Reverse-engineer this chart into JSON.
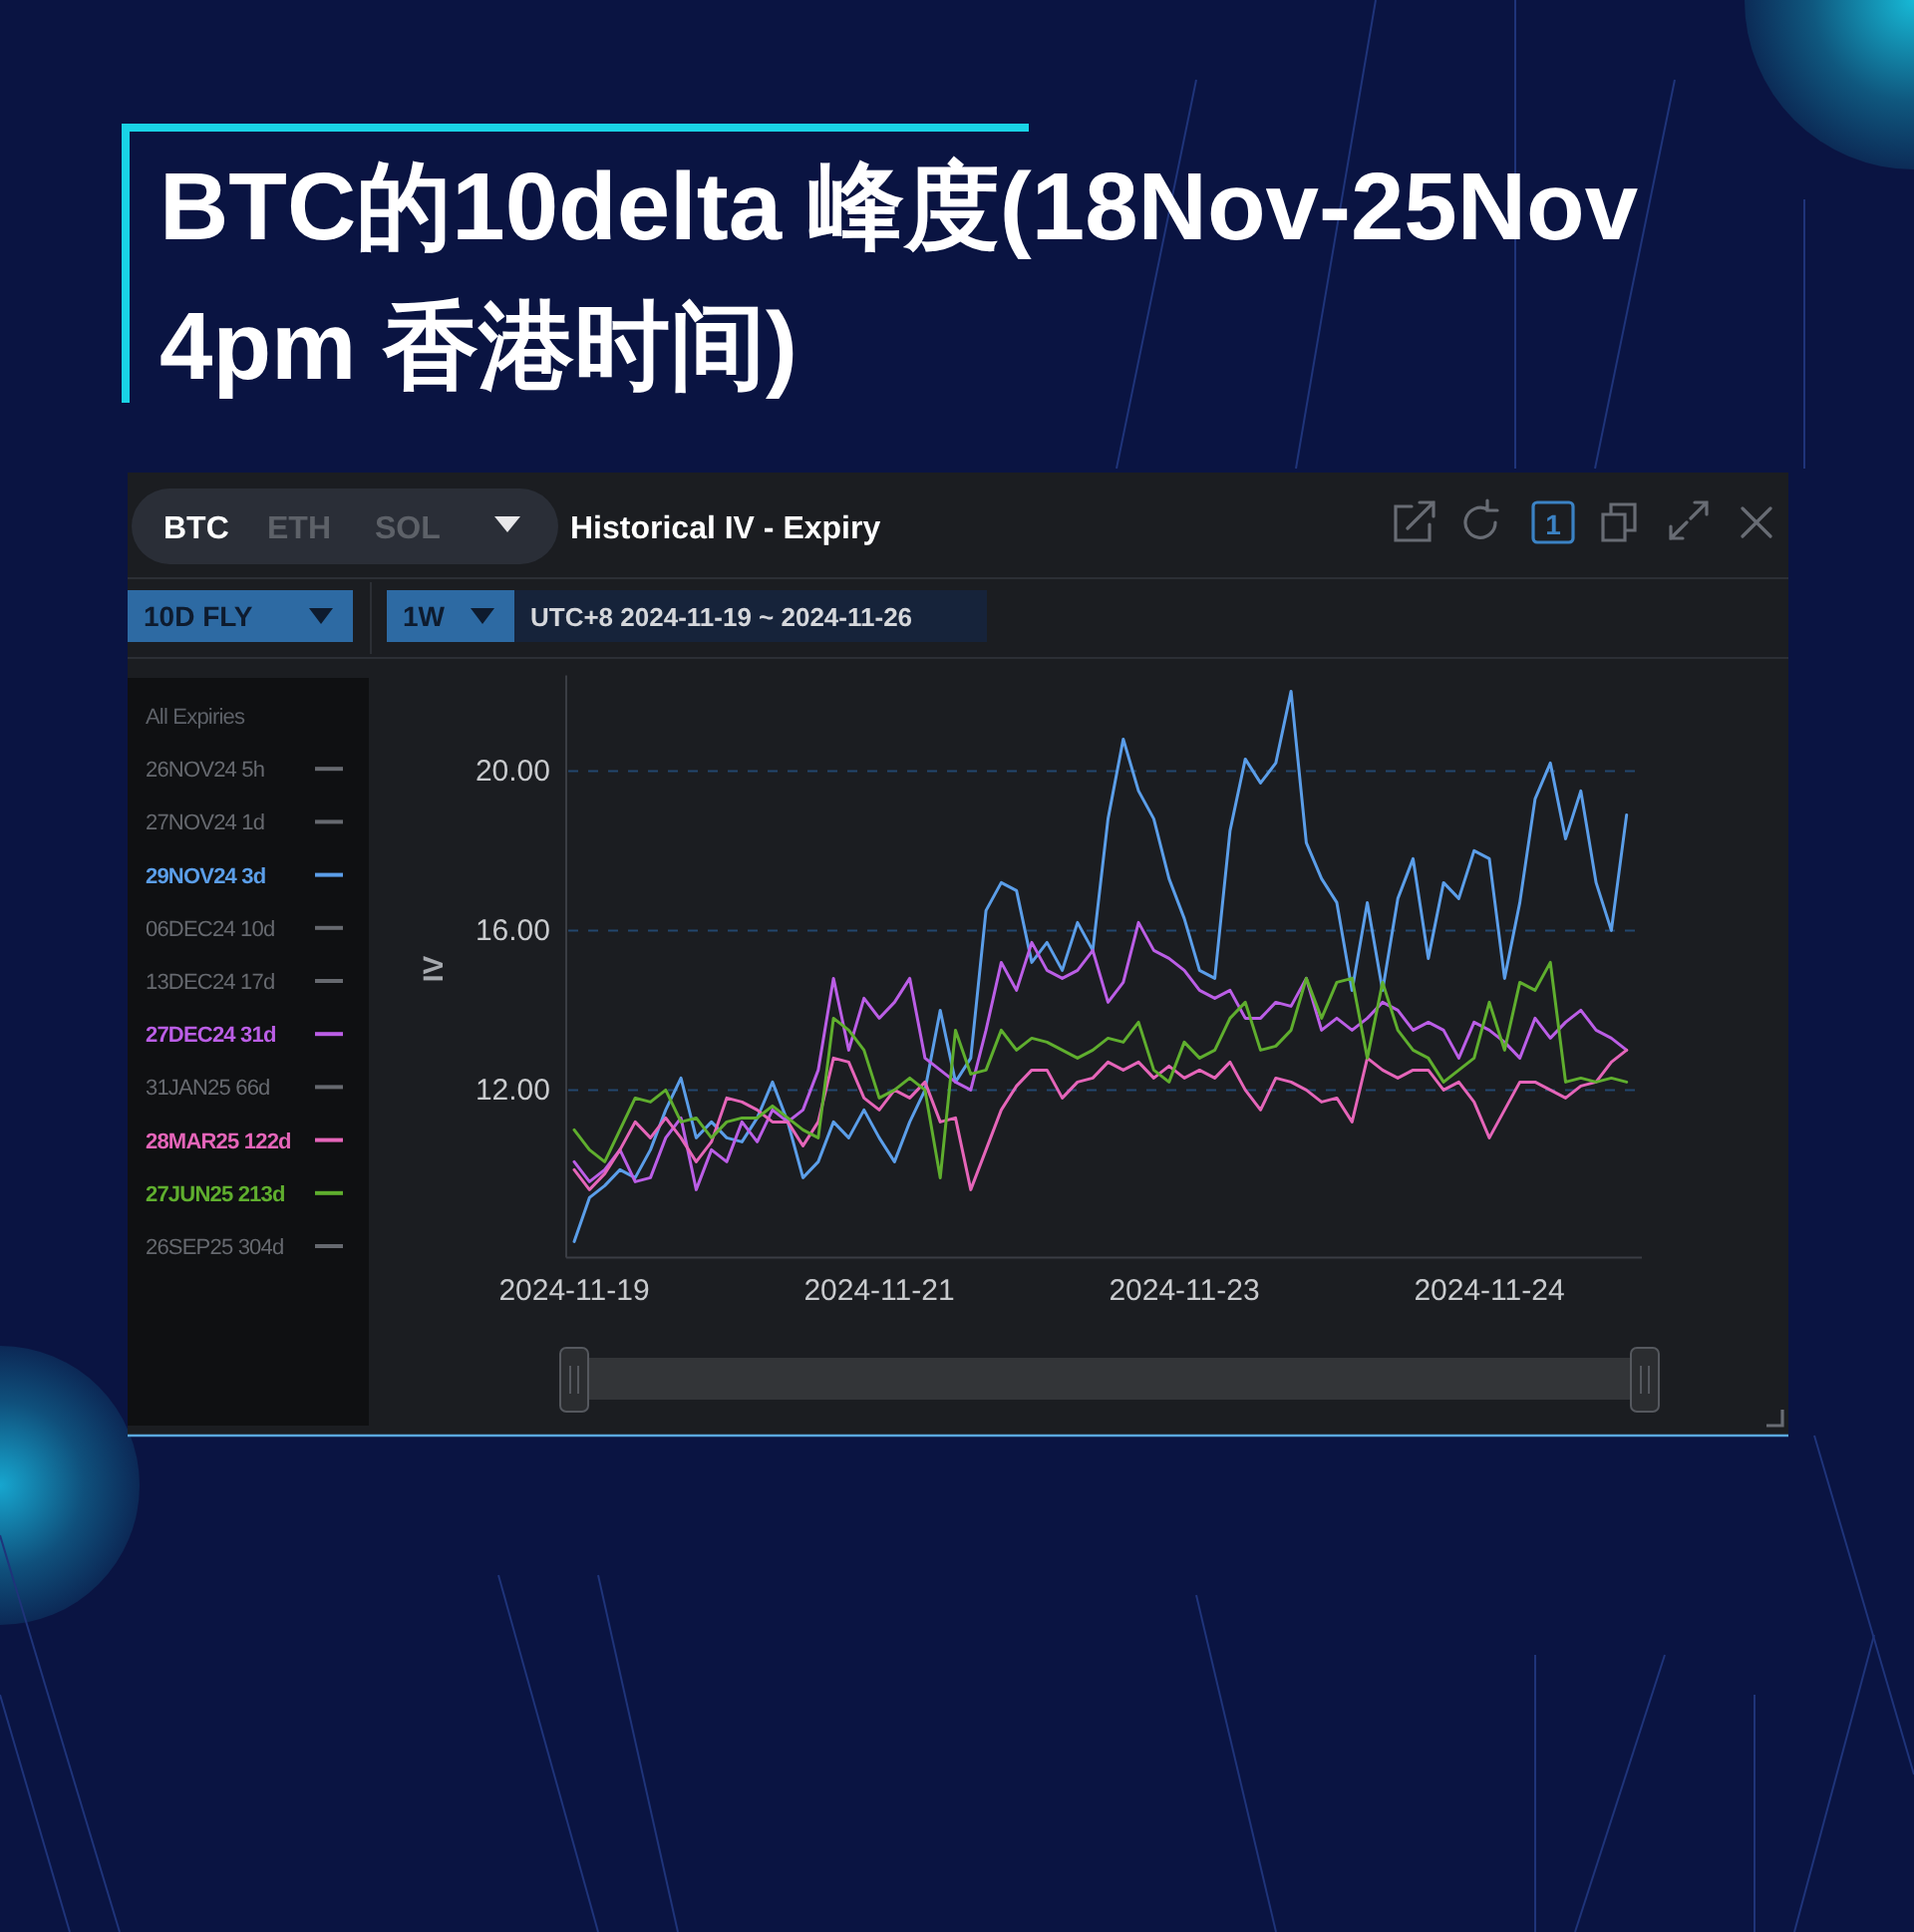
{
  "chart_data": {
    "type": "line",
    "title": "BTC的10delta 峰度(18Nov-25Nov 4pm 香港时间)",
    "subtitle": "Historical IV - Expiry",
    "ylabel": "IV",
    "legend_title": "All Expiries",
    "annotations": [
      "BTC",
      "ETH",
      "SOL",
      "1",
      "10D FLY",
      "1W",
      "UTC+8 2024-11-19 ~ 2024-11-26"
    ],
    "categories": [
      "2024-11-19",
      null,
      null,
      null,
      null,
      null,
      null,
      null,
      null,
      null,
      null,
      null,
      null,
      null,
      null,
      null,
      null,
      null,
      null,
      null,
      "2024-11-21",
      null,
      null,
      null,
      null,
      null,
      null,
      null,
      null,
      null,
      null,
      null,
      null,
      null,
      null,
      null,
      null,
      null,
      null,
      null,
      "2024-11-23",
      null,
      null,
      null,
      null,
      null,
      null,
      null,
      null,
      null,
      null,
      null,
      null,
      null,
      null,
      null,
      null,
      null,
      null,
      null,
      "2024-11-24",
      null,
      null,
      null,
      null,
      null,
      null,
      null,
      null,
      null
    ],
    "ylim": [
      7.8,
      22.4
    ],
    "yticks": [
      {
        "value": 12,
        "label": "12.00"
      },
      {
        "value": 16,
        "label": "16.00"
      },
      {
        "value": 20,
        "label": "20.00"
      }
    ],
    "grid": "y",
    "legend": "left",
    "series": [
      {
        "name": "26NOV24 5h",
        "color": "#66696f",
        "values": [
          null,
          null,
          null,
          null,
          null,
          null,
          null,
          null,
          null,
          null,
          null,
          null,
          null,
          null,
          null,
          null,
          null,
          null,
          null,
          null,
          null,
          null,
          null,
          null,
          null,
          null,
          null,
          null,
          null,
          null,
          null,
          null,
          null,
          null,
          null,
          null,
          null,
          null,
          null,
          null,
          null,
          null,
          null,
          null,
          null,
          null,
          null,
          null,
          null,
          null,
          null,
          null,
          null,
          null,
          null,
          null,
          null,
          null,
          null,
          null,
          null,
          null,
          null,
          null,
          null,
          null,
          null,
          null,
          null,
          null
        ]
      },
      {
        "name": "27NOV24 1d",
        "color": "#66696f",
        "values": [
          null,
          null,
          null,
          null,
          null,
          null,
          null,
          null,
          null,
          null,
          null,
          null,
          null,
          null,
          null,
          null,
          null,
          null,
          null,
          null,
          null,
          null,
          null,
          null,
          null,
          null,
          null,
          null,
          null,
          null,
          null,
          null,
          null,
          null,
          null,
          null,
          null,
          null,
          null,
          null,
          null,
          null,
          null,
          null,
          null,
          null,
          null,
          null,
          null,
          null,
          null,
          null,
          null,
          null,
          null,
          null,
          null,
          null,
          null,
          null,
          null,
          null,
          null,
          null,
          null,
          null,
          null,
          null,
          null,
          null
        ]
      },
      {
        "name": "29NOV24 3d",
        "color": "#5b9ee9",
        "values": [
          8.2,
          9.3,
          9.6,
          10.0,
          9.8,
          10.5,
          11.5,
          12.3,
          10.8,
          11.2,
          10.8,
          10.7,
          11.3,
          12.2,
          11.2,
          9.8,
          10.2,
          11.2,
          10.8,
          11.5,
          10.8,
          10.2,
          11.2,
          12.0,
          14.0,
          12.2,
          12.8,
          16.5,
          17.2,
          17.0,
          15.2,
          15.7,
          15.0,
          16.2,
          15.5,
          18.8,
          20.8,
          19.5,
          18.8,
          17.3,
          16.3,
          15.0,
          14.8,
          18.5,
          20.3,
          19.7,
          20.2,
          22.0,
          18.2,
          17.3,
          16.7,
          14.5,
          16.7,
          14.5,
          16.8,
          17.8,
          15.3,
          17.2,
          16.8,
          18.0,
          17.8,
          14.8,
          16.7,
          19.3,
          20.2,
          18.3,
          19.5,
          17.2,
          16.0,
          18.9
        ]
      },
      {
        "name": "06DEC24 10d",
        "color": "#66696f",
        "values": [
          null,
          null,
          null,
          null,
          null,
          null,
          null,
          null,
          null,
          null,
          null,
          null,
          null,
          null,
          null,
          null,
          null,
          null,
          null,
          null,
          null,
          null,
          null,
          null,
          null,
          null,
          null,
          null,
          null,
          null,
          null,
          null,
          null,
          null,
          null,
          null,
          null,
          null,
          null,
          null,
          null,
          null,
          null,
          null,
          null,
          null,
          null,
          null,
          null,
          null,
          null,
          null,
          null,
          null,
          null,
          null,
          null,
          null,
          null,
          null,
          null,
          null,
          null,
          null,
          null,
          null,
          null,
          null,
          null,
          null
        ]
      },
      {
        "name": "13DEC24 17d",
        "color": "#66696f",
        "values": [
          null,
          null,
          null,
          null,
          null,
          null,
          null,
          null,
          null,
          null,
          null,
          null,
          null,
          null,
          null,
          null,
          null,
          null,
          null,
          null,
          null,
          null,
          null,
          null,
          null,
          null,
          null,
          null,
          null,
          null,
          null,
          null,
          null,
          null,
          null,
          null,
          null,
          null,
          null,
          null,
          null,
          null,
          null,
          null,
          null,
          null,
          null,
          null,
          null,
          null,
          null,
          null,
          null,
          null,
          null,
          null,
          null,
          null,
          null,
          null,
          null,
          null,
          null,
          null,
          null,
          null,
          null,
          null,
          null,
          null
        ]
      },
      {
        "name": "27DEC24 31d",
        "color": "#bb5ee6",
        "values": [
          10.2,
          9.7,
          10.0,
          10.5,
          9.7,
          9.8,
          10.8,
          11.3,
          9.5,
          10.5,
          10.2,
          11.2,
          10.7,
          11.5,
          11.2,
          11.5,
          12.5,
          14.8,
          13.0,
          14.3,
          13.8,
          14.2,
          14.8,
          12.8,
          12.5,
          12.2,
          12.0,
          13.5,
          15.2,
          14.5,
          15.7,
          15.0,
          14.8,
          15.0,
          15.5,
          14.2,
          14.7,
          16.2,
          15.5,
          15.3,
          15.0,
          14.5,
          14.3,
          14.5,
          13.8,
          13.8,
          14.2,
          14.1,
          14.8,
          13.5,
          13.8,
          13.5,
          13.8,
          14.2,
          14.0,
          13.5,
          13.7,
          13.5,
          12.8,
          13.7,
          13.5,
          13.2,
          12.8,
          13.8,
          13.3,
          13.7,
          14.0,
          13.5,
          13.3,
          13.0
        ]
      },
      {
        "name": "31JAN25 66d",
        "color": "#66696f",
        "values": [
          null,
          null,
          null,
          null,
          null,
          null,
          null,
          null,
          null,
          null,
          null,
          null,
          null,
          null,
          null,
          null,
          null,
          null,
          null,
          null,
          null,
          null,
          null,
          null,
          null,
          null,
          null,
          null,
          null,
          null,
          null,
          null,
          null,
          null,
          null,
          null,
          null,
          null,
          null,
          null,
          null,
          null,
          null,
          null,
          null,
          null,
          null,
          null,
          null,
          null,
          null,
          null,
          null,
          null,
          null,
          null,
          null,
          null,
          null,
          null,
          null,
          null,
          null,
          null,
          null,
          null,
          null,
          null,
          null,
          null
        ]
      },
      {
        "name": "28MAR25 122d",
        "color": "#e565b9",
        "values": [
          10.0,
          9.5,
          9.9,
          10.5,
          11.2,
          10.8,
          11.3,
          10.8,
          10.2,
          10.7,
          11.8,
          11.7,
          11.5,
          11.2,
          11.2,
          10.6,
          11.2,
          12.8,
          12.7,
          11.8,
          11.5,
          12.0,
          11.8,
          12.2,
          11.2,
          11.3,
          9.5,
          10.5,
          11.5,
          12.1,
          12.5,
          12.5,
          11.8,
          12.2,
          12.3,
          12.7,
          12.5,
          12.7,
          12.3,
          12.6,
          12.3,
          12.5,
          12.3,
          12.7,
          12.0,
          11.5,
          12.3,
          12.2,
          12.0,
          11.7,
          11.8,
          11.2,
          12.8,
          12.5,
          12.3,
          12.5,
          12.5,
          12.0,
          12.2,
          11.7,
          10.8,
          11.5,
          12.2,
          12.2,
          12.0,
          11.8,
          12.1,
          12.2,
          12.7,
          13.0
        ]
      },
      {
        "name": "27JUN25 213d",
        "color": "#5fae2e",
        "values": [
          11.0,
          10.5,
          10.2,
          11.0,
          11.8,
          11.7,
          12.0,
          11.2,
          11.3,
          10.8,
          11.2,
          11.3,
          11.3,
          11.6,
          11.3,
          11.0,
          10.8,
          13.8,
          13.5,
          13.0,
          11.8,
          12.0,
          12.3,
          12.0,
          9.8,
          13.5,
          12.4,
          12.5,
          13.5,
          13.0,
          13.3,
          13.2,
          13.0,
          12.8,
          13.0,
          13.3,
          13.2,
          13.7,
          12.5,
          12.2,
          13.2,
          12.8,
          13.0,
          13.8,
          14.2,
          13.0,
          13.1,
          13.5,
          14.8,
          13.8,
          14.7,
          14.8,
          12.8,
          14.7,
          13.5,
          13.0,
          12.8,
          12.2,
          12.5,
          12.8,
          14.2,
          13.0,
          14.7,
          14.5,
          15.2,
          12.2,
          12.3,
          12.2,
          12.3,
          12.2
        ]
      },
      {
        "name": "26SEP25 304d",
        "color": "#66696f",
        "values": [
          null,
          null,
          null,
          null,
          null,
          null,
          null,
          null,
          null,
          null,
          null,
          null,
          null,
          null,
          null,
          null,
          null,
          null,
          null,
          null,
          null,
          null,
          null,
          null,
          null,
          null,
          null,
          null,
          null,
          null,
          null,
          null,
          null,
          null,
          null,
          null,
          null,
          null,
          null,
          null,
          null,
          null,
          null,
          null,
          null,
          null,
          null,
          null,
          null,
          null,
          null,
          null,
          null,
          null,
          null,
          null,
          null,
          null,
          null,
          null,
          null,
          null,
          null,
          null,
          null,
          null,
          null,
          null,
          null,
          null
        ]
      }
    ]
  }
}
